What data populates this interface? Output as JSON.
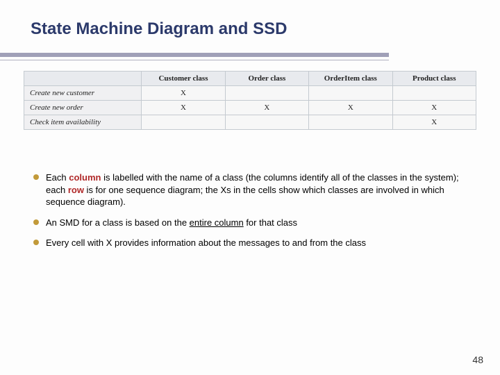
{
  "title": "State Machine Diagram and SSD",
  "title_color": "#2c3a6b",
  "underline_color": "#a0a0b8",
  "table": {
    "columns": [
      "",
      "Customer class",
      "Order class",
      "OrderItem class",
      "Product class"
    ],
    "rows": [
      {
        "label": "Create new customer",
        "cells": [
          "X",
          "",
          "",
          ""
        ]
      },
      {
        "label": "Create new order",
        "cells": [
          "X",
          "X",
          "X",
          "X"
        ]
      },
      {
        "label": "Check item availability",
        "cells": [
          "",
          "",
          "",
          "X"
        ]
      }
    ],
    "header_bg": "#e8eaee",
    "cell_bg": "#f7f7f7",
    "border_color": "#c4cad0",
    "font_family": "Times New Roman",
    "font_size_pt": 8
  },
  "bullets": [
    {
      "text_pre": "Each ",
      "kw1": "column",
      "text_mid": " is labelled with the name of a class (the columns identify all of the classes in the system); each ",
      "kw2": "row",
      "text_post": " is for one sequence diagram; the Xs in the cells show which classes are involved in which sequence diagram)."
    },
    {
      "text_pre": "An SMD for a class is based on the ",
      "ul": "entire column",
      "text_post": " for that class"
    },
    {
      "text_pre": "Every cell with X provides information about the messages to and from the class",
      "text_post": ""
    }
  ],
  "bullet_color": "#c29a3a",
  "keyword_color": "#b02828",
  "page_number": "48",
  "background_color": "#fdfdfd",
  "body_font_size_pt": 10
}
